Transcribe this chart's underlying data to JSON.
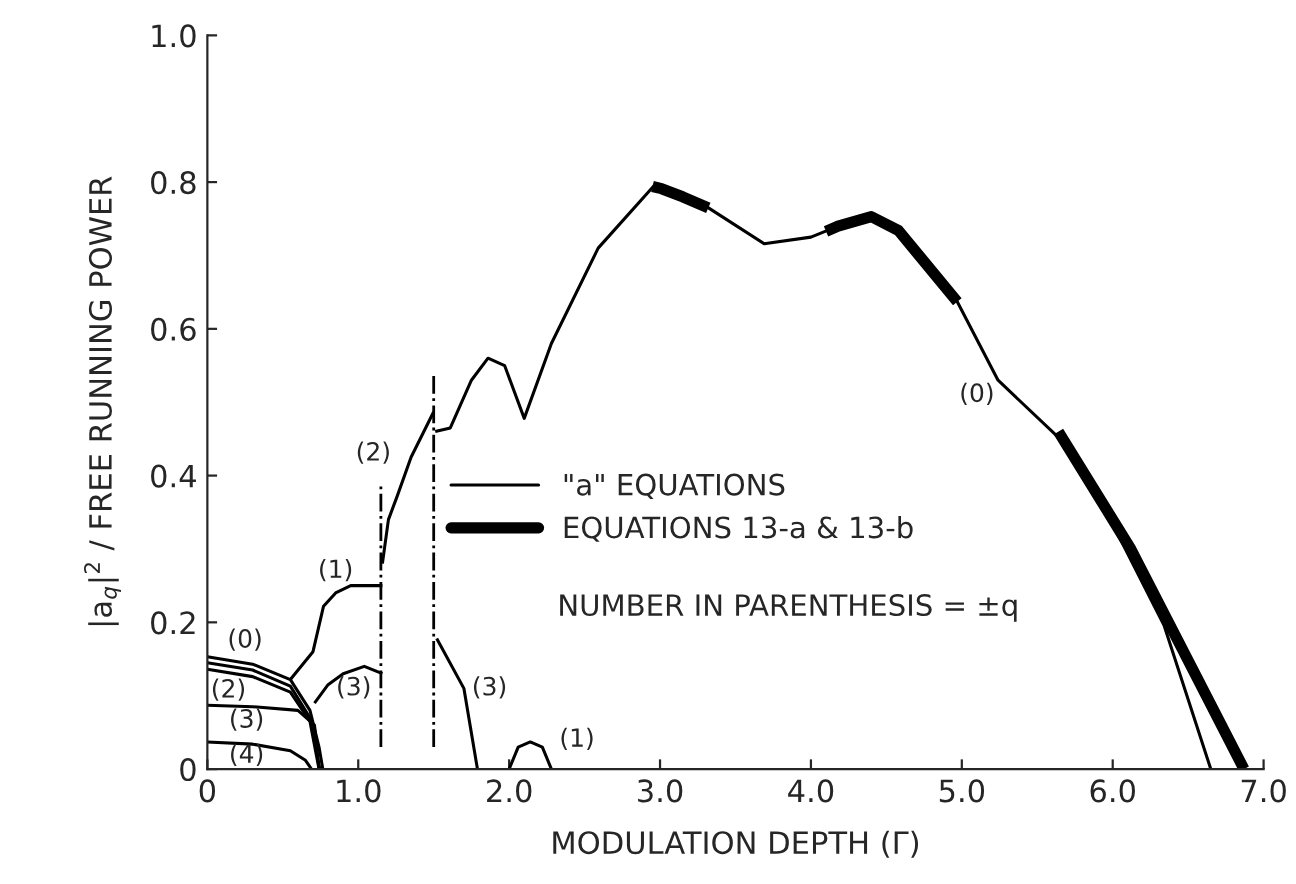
{
  "chart_data": {
    "type": "line",
    "xlabel": "MODULATION DEPTH (Γ)",
    "ylabel": "|a$_{q}$|$^{2}$ / FREE RUNNING POWER",
    "xlim": [
      0,
      7
    ],
    "ylim": [
      0,
      1
    ],
    "xticks": [
      0,
      {
        "value": 1,
        "label": "1.0"
      },
      {
        "value": 2,
        "label": "2.0"
      },
      {
        "value": 3,
        "label": "3.0"
      },
      {
        "value": 4,
        "label": "4.0"
      },
      {
        "value": 5,
        "label": "5.0"
      },
      {
        "value": 6,
        "label": "6.0"
      },
      {
        "value": 7,
        "label": "7.0"
      }
    ],
    "yticks": [
      0,
      0.2,
      0.4,
      0.6,
      0.8,
      {
        "value": 1,
        "label": "1.0"
      }
    ],
    "grid": false,
    "legend": "center",
    "marker": "none",
    "series": [
      {
        "name": "\"a\" EQUATIONS",
        "color": "#000000",
        "x": [
          0,
          0.3,
          0.55,
          0.68,
          0.74,
          0.765
        ],
        "values": [
          0.153,
          0.143,
          0.122,
          0.08,
          0.03,
          0
        ]
      },
      {
        "color": "#000000",
        "x": [
          0,
          0.3,
          0.55,
          0.68,
          0.745
        ],
        "values": [
          0.145,
          0.135,
          0.113,
          0.07,
          0
        ]
      },
      {
        "color": "#000000",
        "x": [
          0,
          0.3,
          0.55,
          0.68,
          0.74
        ],
        "values": [
          0.136,
          0.126,
          0.105,
          0.065,
          0
        ]
      },
      {
        "color": "#000000",
        "x": [
          0,
          0.3,
          0.6,
          0.71,
          0.74
        ],
        "values": [
          0.087,
          0.085,
          0.08,
          0.06,
          0
        ]
      },
      {
        "color": "#000000",
        "x": [
          0,
          0.3,
          0.55,
          0.65,
          0.69
        ],
        "values": [
          0.037,
          0.034,
          0.025,
          0.012,
          0
        ]
      },
      {
        "color": "#000000",
        "x": [
          0.55,
          0.7,
          0.77,
          0.85,
          0.95,
          1.16
        ],
        "values": [
          0.122,
          0.16,
          0.222,
          0.24,
          0.25,
          0.25
        ]
      },
      {
        "color": "#000000",
        "x": [
          0.71,
          0.8,
          0.9,
          1.04,
          1.16
        ],
        "values": [
          0.09,
          0.115,
          0.13,
          0.14,
          0.13
        ]
      },
      {
        "color": "#000000",
        "x": [
          1.16,
          1.2,
          1.26,
          1.35,
          1.5
        ],
        "values": [
          0.28,
          0.34,
          0.373,
          0.425,
          0.487
        ]
      },
      {
        "color": "#000000",
        "x": [
          1.51,
          1.61,
          1.75,
          1.86,
          1.97,
          2.1,
          2.28,
          2.59,
          2.96,
          3.01,
          3.29,
          3.69,
          4.0,
          4.18,
          4.4,
          4.58,
          4.97,
          5.24,
          5.64,
          5.95,
          6.34,
          6.65
        ],
        "values": [
          0.46,
          0.465,
          0.53,
          0.56,
          0.55,
          0.478,
          0.58,
          0.71,
          0.795,
          0.791,
          0.769,
          0.716,
          0.725,
          0.74,
          0.753,
          0.734,
          0.637,
          0.53,
          0.452,
          0.354,
          0.196,
          0
        ]
      },
      {
        "color": "#000000",
        "x": [
          1.52,
          1.7,
          1.79
        ],
        "values": [
          0.178,
          0.11,
          0
        ]
      },
      {
        "color": "#000000",
        "x": [
          2.0,
          2.06,
          2.14,
          2.22,
          2.28
        ],
        "values": [
          0,
          0.03,
          0.037,
          0.03,
          0
        ]
      },
      {
        "line_style": "dashed",
        "color": "#000000",
        "x": [
          1.15,
          1.15
        ],
        "values": [
          0.03,
          0.39
        ]
      },
      {
        "line_style": "dashed",
        "color": "#000000",
        "x": [
          1.5,
          1.5
        ],
        "values": [
          0.03,
          0.54
        ]
      },
      {
        "name": "EQUATIONS 13-a & 13-b",
        "color": "#000000",
        "x": [
          2.95,
          3.01,
          3.15,
          3.32
        ],
        "values": [
          0.794,
          0.791,
          0.78,
          0.765
        ]
      },
      {
        "color": "#000000",
        "x": [
          4.1,
          4.18,
          4.4,
          4.58,
          4.97
        ],
        "values": [
          0.733,
          0.74,
          0.753,
          0.734,
          0.637
        ]
      },
      {
        "color": "#000000",
        "x": [
          5.64,
          6.12,
          6.87
        ],
        "values": [
          0.46,
          0.3,
          0
        ]
      }
    ],
    "annotations": [
      "(0)",
      "(2)",
      "(3)",
      "(4)",
      "(1)",
      "(3)",
      "(2)",
      "(3)",
      "(1)",
      "(0)",
      "NUMBER IN PARENTHESIS = ±q"
    ]
  }
}
